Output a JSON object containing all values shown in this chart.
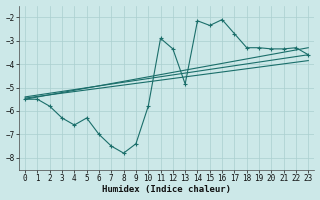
{
  "xlabel": "Humidex (Indice chaleur)",
  "background_color": "#cce8e8",
  "grid_color": "#aacfcf",
  "line_color": "#1a6e6a",
  "xlim": [
    -0.5,
    23.5
  ],
  "ylim": [
    -8.5,
    -1.5
  ],
  "xticks": [
    0,
    1,
    2,
    3,
    4,
    5,
    6,
    7,
    8,
    9,
    10,
    11,
    12,
    13,
    14,
    15,
    16,
    17,
    18,
    19,
    20,
    21,
    22,
    23
  ],
  "yticks": [
    -8,
    -7,
    -6,
    -5,
    -4,
    -3,
    -2
  ],
  "main_x": [
    0,
    1,
    2,
    3,
    4,
    5,
    6,
    7,
    8,
    9,
    10,
    11,
    12,
    13,
    14,
    15,
    16,
    17,
    18,
    19,
    20,
    21,
    22,
    23
  ],
  "main_y": [
    -5.5,
    -5.5,
    -5.8,
    -6.3,
    -6.6,
    -6.3,
    -7.0,
    -7.5,
    -7.8,
    -7.4,
    -5.8,
    -2.9,
    -3.35,
    -4.85,
    -2.15,
    -2.35,
    -2.1,
    -2.7,
    -3.3,
    -3.3,
    -3.35,
    -3.35,
    -3.3,
    -3.6
  ],
  "line2_x": [
    0,
    23
  ],
  "line2_y": [
    -5.5,
    -3.3
  ],
  "line3_x": [
    0,
    23
  ],
  "line3_y": [
    -5.4,
    -3.6
  ],
  "line4_x": [
    0,
    23
  ],
  "line4_y": [
    -5.45,
    -3.85
  ]
}
